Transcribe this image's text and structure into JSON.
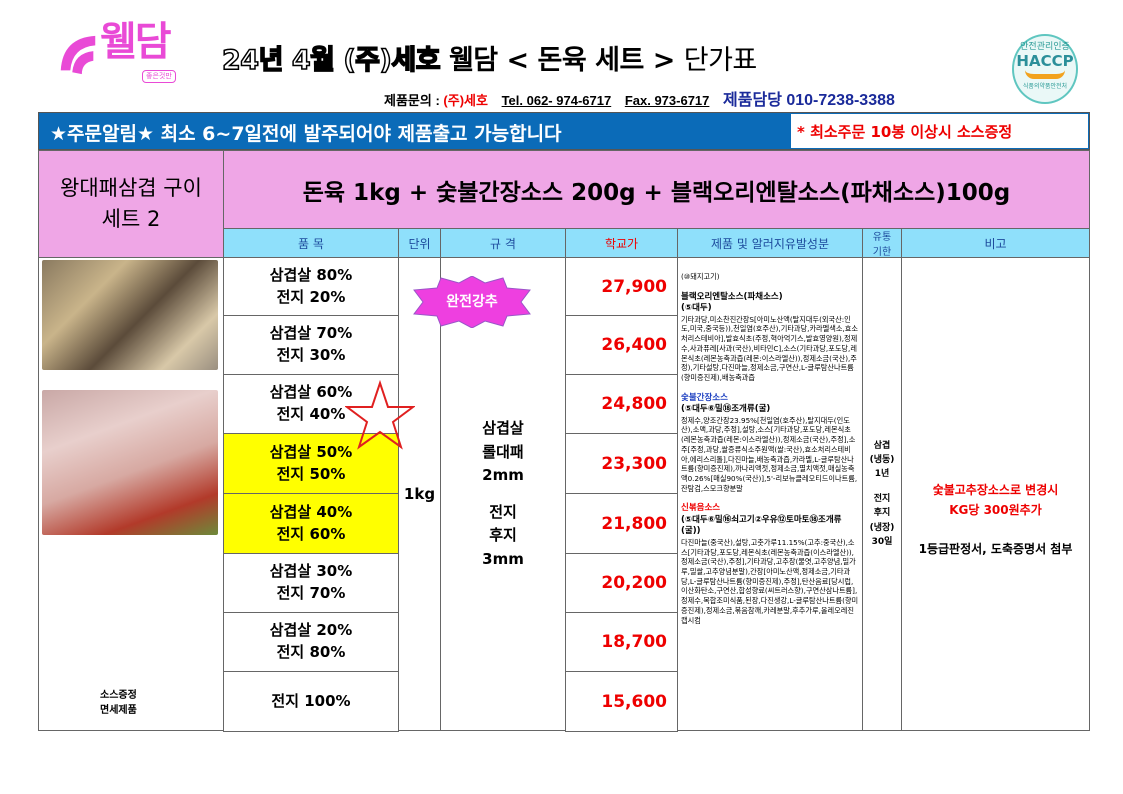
{
  "header": {
    "logo_text": "웰담",
    "logo_sub": "좋은것만",
    "title_outline": "24년 4월 (주)세호",
    "title_bold": "웰담 < 돈육 세트 >",
    "title_thin": "단가표",
    "contact_label": "제품문의 :",
    "company": "(주)세호",
    "tel": "Tel. 062- 974-6717",
    "fax": "Fax. 973-6717",
    "manager": "제품담당  010-7238-3388",
    "haccp_top": "안전관리인증",
    "haccp": "HACCP",
    "haccp_bottom": "식품의약품안전처"
  },
  "banner": {
    "text": "★주문알림★  최소 6~7일전에 발주되어야 제품출고 가능합니다",
    "notice": "* 최소주문 10봉 이상시 소스증정",
    "color": "#0b6bb8"
  },
  "product": {
    "name": "왕대패삼겹 구이세트 2",
    "composition": "돈육 1kg + 숯불간장소스 200g + 블랙오리엔탈소스(파채소스)100g"
  },
  "columns": [
    "품  목",
    "단위",
    "규  격",
    "학교가",
    "제품 및 알러지유발성분",
    "유통 기한",
    "비고"
  ],
  "rows": [
    {
      "item": [
        "삼겹살 80%",
        "전지 20%"
      ],
      "price": "27,900",
      "highlight": false
    },
    {
      "item": [
        "삼겹살 70%",
        "전지 30%"
      ],
      "price": "26,400",
      "highlight": false
    },
    {
      "item": [
        "삼겹살 60%",
        "전지 40%"
      ],
      "price": "24,800",
      "highlight": false
    },
    {
      "item": [
        "삼겹살 50%",
        "전지 50%"
      ],
      "price": "23,300",
      "highlight": true
    },
    {
      "item": [
        "삼겹살 40%",
        "전지 60%"
      ],
      "price": "21,800",
      "highlight": true
    },
    {
      "item": [
        "삼겹살 30%",
        "전지 70%"
      ],
      "price": "20,200",
      "highlight": false
    },
    {
      "item": [
        "삼겹살 20%",
        "전지 80%"
      ],
      "price": "18,700",
      "highlight": false
    },
    {
      "item": [
        "전지 100%"
      ],
      "price": "15,600",
      "highlight": false
    }
  ],
  "unit": "1kg",
  "spec": [
    "삼겹살",
    "롤대패",
    "2mm",
    "",
    "전지",
    "후지",
    "3mm"
  ],
  "badge": "완전강추",
  "side_note": [
    "소스증정",
    "면세제품"
  ],
  "ingredients": {
    "meat": "(⑩돼지고기)",
    "sauce1_name": "블랙오리엔탈소스(파채소스)",
    "sauce1_allergen": "(⑤대두)",
    "sauce1_text": "기타과당,미소찬진간장S[아미노산액(탈지대두(외국산:인도,미국,중국등)),천일염(호주산),기타과당,카라멜색소,효소처리스테비아],발효식초(주정,혁아억기스,발효영양원),정제수,사과퓨레[사과(국산),비타민C],소스(기타과당,포도당,레몬식초(레몬농축과즙(레몬:이스라엘산)),정제소금(국산),주정),기타설탕,다진마늘,정제소금,구연산,L-글루탐산나트륨(향미증진제),배농축과즙",
    "sauce2_name": "숯불간장소스",
    "sauce2_allergen": "(⑤대두⑥밀⑱조개류(굴)",
    "sauce2_text": "정제수,양조간장23.95%[천일염(호주산),탈지대두(인도산),소맥,과당,주정],설탕,소스[기타과당,포도당,레몬식초(레몬농축과즙(레몬:이스라엘산)),정제소금(국산),주정],소주[주정,과당,쌀증류식소주원액(쌀:국산),효소처리스테비아,에리스리톨],다진마늘,배농축과즙,카라멜,L-글루탐산나트륨(향미증진제),까나리액젓,정제소금,멸치액젓,매실농축액0.26%[매실90%(국산)],5'-리보뉴클레오티드이나트륨,잔탐검,스모크향분말",
    "sauce3_name": "신볶음소스",
    "sauce3_allergen": "(⑤대두⑥밀⑯쇠고기②우유⑫토마토⑱조개류(굴))",
    "sauce3_text": "다진마늘(중국산),설탕,고춧가루11.15%(고추:중국산),소스[기타과당,포도당,레몬식초(레몬농축과즙(이스라엘산)),정제소금(국산),주정],기타과당,고추장(물엿,고추양념,밀가루,밀쌀,고추양념분말),간장[아미노산액,정제소금,기타과당,L-글루탐산나트륨(향미증진제),주정],탄산음료[당시럽,이산화탄소,구연산,합성향료(씨트러스향),구연산삼나트륨],정제수,복합조미식품,된장,다진생강,L-글루탐산나트륨(향미증진제),정제소금,볶음참깨,카레분말,후추가루,올레오레진캡시컴"
  },
  "shelf_life": [
    "삼겹",
    "(냉동)",
    "1년",
    "",
    "전지",
    "후지",
    "(냉장)",
    "30일"
  ],
  "remarks": {
    "red": [
      "숯불고추장소스로 변경시",
      "KG당 300원추가"
    ],
    "black": "1등급판정서, 도축증명서 첨부"
  }
}
